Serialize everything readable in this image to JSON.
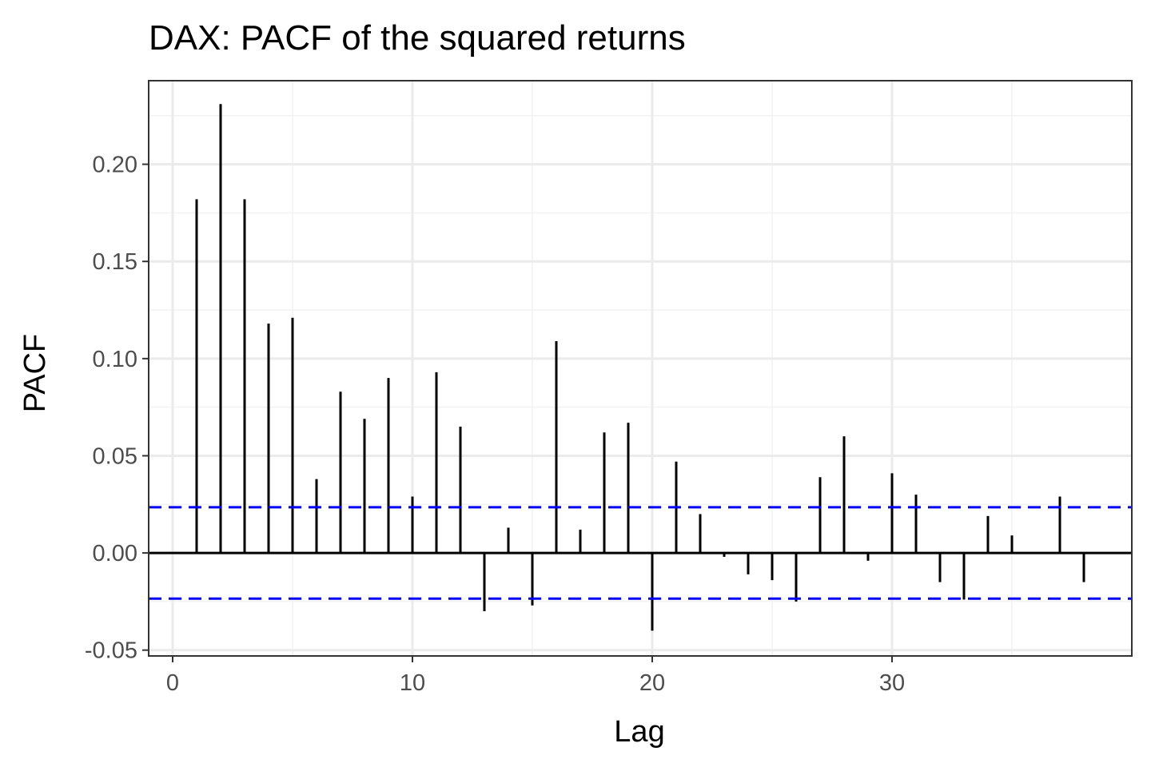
{
  "chart_data": {
    "type": "bar",
    "title": "DAX: PACF of the squared returns",
    "xlabel": "Lag",
    "ylabel": "PACF",
    "xlim": [
      -1,
      40
    ],
    "ylim": [
      -0.053,
      0.243
    ],
    "x_ticks": [
      0,
      10,
      20,
      30
    ],
    "x_tick_labels": [
      "0",
      "10",
      "20",
      "30"
    ],
    "y_ticks": [
      -0.05,
      0.0,
      0.05,
      0.1,
      0.15,
      0.2
    ],
    "y_tick_labels": [
      "-0.05",
      "0.00",
      "0.05",
      "0.10",
      "0.15",
      "0.20"
    ],
    "x_minor_ticks": [
      5,
      15,
      25,
      35
    ],
    "y_minor_ticks": [
      -0.025,
      0.025,
      0.075,
      0.125,
      0.175,
      0.225
    ],
    "grid": true,
    "confidence_bound": 0.0235,
    "confidence_color": "#0000ff",
    "bar_color": "#000000",
    "x": [
      1,
      2,
      3,
      4,
      5,
      6,
      7,
      8,
      9,
      10,
      11,
      12,
      13,
      14,
      15,
      16,
      17,
      18,
      19,
      20,
      21,
      22,
      23,
      24,
      25,
      26,
      27,
      28,
      29,
      30,
      31,
      32,
      33,
      34,
      35,
      36,
      37,
      38
    ],
    "values": [
      0.182,
      0.231,
      0.182,
      0.118,
      0.121,
      0.038,
      0.083,
      0.069,
      0.09,
      0.029,
      0.093,
      0.065,
      -0.03,
      0.013,
      -0.027,
      0.109,
      0.012,
      0.062,
      0.067,
      -0.04,
      0.047,
      0.02,
      -0.002,
      -0.011,
      -0.014,
      -0.025,
      0.039,
      0.06,
      -0.004,
      0.041,
      0.03,
      -0.015,
      -0.024,
      0.019,
      0.009,
      0.0,
      0.029,
      -0.015
    ]
  }
}
